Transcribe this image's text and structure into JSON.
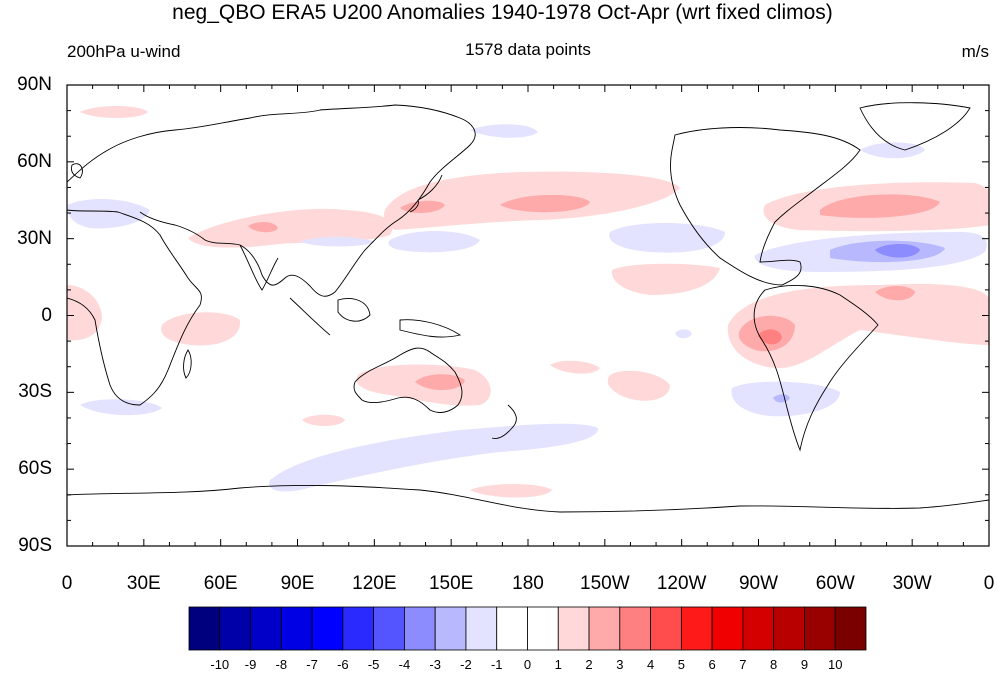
{
  "title": "neg_QBO ERA5 U200 Anomalies 1940-1978 Oct-Apr (wrt fixed climos)",
  "subtitle_left": "200hPa u-wind",
  "subtitle_center": "1578 data points",
  "subtitle_right": "m/s",
  "map": {
    "projection": "cylindrical-equidistant",
    "lon_range": [
      0,
      360
    ],
    "lat_range": [
      -90,
      90
    ],
    "coastlines": true
  },
  "axes": {
    "y_labels": [
      "90N",
      "60N",
      "30N",
      "0",
      "30S",
      "60S",
      "90S"
    ],
    "x_labels": [
      "0",
      "30E",
      "60E",
      "90E",
      "120E",
      "150E",
      "180",
      "150W",
      "120W",
      "90W",
      "60W",
      "30W",
      "0"
    ]
  },
  "colorbar": {
    "labels": [
      "-10",
      "-9",
      "-8",
      "-7",
      "-6",
      "-5",
      "-4",
      "-3",
      "-2",
      "-1",
      "0",
      "1",
      "2",
      "3",
      "4",
      "5",
      "6",
      "7",
      "8",
      "9",
      "10"
    ],
    "colors": [
      "#00007f",
      "#0000a8",
      "#0000c9",
      "#0000e5",
      "#0000ff",
      "#2a2aff",
      "#5555ff",
      "#8c8cff",
      "#b8b8ff",
      "#e3e3ff",
      "#ffffff",
      "#ffffff",
      "#ffd9d9",
      "#ffaaaa",
      "#ff8080",
      "#ff4d4d",
      "#ff1a1a",
      "#f00000",
      "#d40000",
      "#b80000",
      "#990000",
      "#7a0000"
    ]
  },
  "chart_data": {
    "type": "heatmap",
    "variable": "200hPa u-wind anomaly",
    "units": "m/s",
    "anomaly_features": [
      {
        "lon": 157,
        "lat": 38,
        "value": 2
      },
      {
        "lon": 195,
        "lat": 43,
        "value": 3
      },
      {
        "lon": 78,
        "lat": 35,
        "value": 3
      },
      {
        "lon": 315,
        "lat": 43,
        "value": 3
      },
      {
        "lon": 325,
        "lat": 24,
        "value": -4
      },
      {
        "lon": 272,
        "lat": -10,
        "value": 4
      },
      {
        "lon": 305,
        "lat": 8,
        "value": 3
      },
      {
        "lon": 150,
        "lat": -27,
        "value": 3
      },
      {
        "lon": 122,
        "lat": -52,
        "value": -2
      },
      {
        "lon": 280,
        "lat": -33,
        "value": -3
      },
      {
        "lon": 240,
        "lat": 30,
        "value": -2
      },
      {
        "lon": 30,
        "lat": -35,
        "value": -2
      }
    ]
  }
}
